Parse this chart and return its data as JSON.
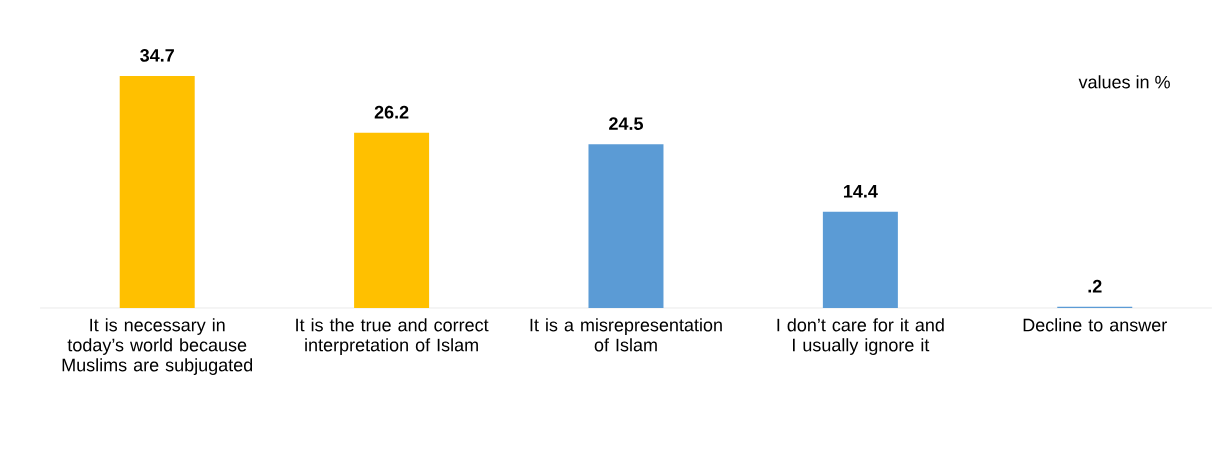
{
  "chart_data": {
    "type": "bar",
    "categories": [
      "It is necessary in today’s world because Muslims are subjugated",
      "It is the true and correct interpretation of Islam",
      "It is a misrepresentation of Islam",
      "I don’t care for it and I usually ignore it",
      "Decline to answer"
    ],
    "values": [
      34.7,
      26.2,
      24.5,
      14.4,
      0.2
    ],
    "colors": [
      "#ffc000",
      "#ffc000",
      "#5b9bd5",
      "#5b9bd5",
      "#5b9bd5"
    ],
    "value_labels": [
      "34.7",
      "26.2",
      "24.5",
      "14.4",
      ".2"
    ],
    "annotations": [
      "values in %"
    ]
  }
}
